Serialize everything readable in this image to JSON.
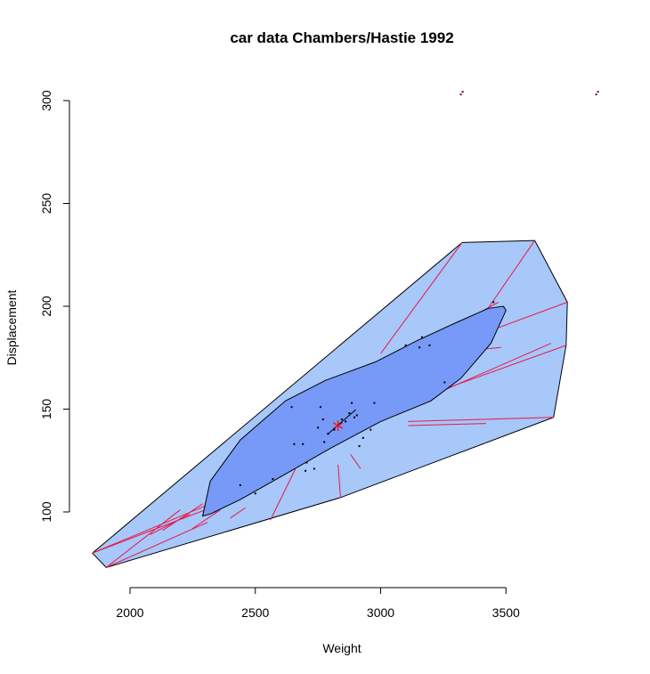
{
  "chart_data": {
    "type": "scatter",
    "title": "car data Chambers/Hastie 1992",
    "xlabel": "Weight",
    "ylabel": "Displacement",
    "xticks": [
      2000,
      2500,
      3000,
      3500
    ],
    "yticks": [
      100,
      150,
      200,
      250,
      300
    ],
    "xlim": [
      1850,
      3850
    ],
    "ylim": [
      73,
      305
    ],
    "colors": {
      "bag_outer": "#A7C8F9",
      "bag_inner": "#7799F7",
      "loop_lines": "#E8174B",
      "points": "#000000",
      "center": "#FF0000"
    },
    "center": {
      "x": 2830,
      "y": 142
    },
    "loop": [
      [
        1850,
        80
      ],
      [
        1905,
        73
      ],
      [
        2840,
        107
      ],
      [
        3690,
        146
      ],
      [
        3740,
        181
      ],
      [
        3745,
        202
      ],
      [
        3615,
        232
      ],
      [
        3325,
        231
      ],
      [
        1850,
        80
      ]
    ],
    "bag": [
      [
        2290,
        98
      ],
      [
        2320,
        99
      ],
      [
        2440,
        106
      ],
      [
        2600,
        117
      ],
      [
        2800,
        131
      ],
      [
        3000,
        144
      ],
      [
        3200,
        154
      ],
      [
        3320,
        165
      ],
      [
        3440,
        182
      ],
      [
        3500,
        198
      ],
      [
        3490,
        200
      ],
      [
        3430,
        199
      ],
      [
        3300,
        192
      ],
      [
        3140,
        183
      ],
      [
        2980,
        173
      ],
      [
        2780,
        164
      ],
      [
        2620,
        154
      ],
      [
        2440,
        135
      ],
      [
        2320,
        115
      ],
      [
        2290,
        98
      ]
    ],
    "points": [
      [
        2440,
        113
      ],
      [
        2500,
        109
      ],
      [
        2570,
        116
      ],
      [
        2645,
        151
      ],
      [
        2655,
        133
      ],
      [
        2690,
        133
      ],
      [
        2700,
        120
      ],
      [
        2705,
        124
      ],
      [
        2735,
        121
      ],
      [
        2750,
        141
      ],
      [
        2760,
        151
      ],
      [
        2770,
        145
      ],
      [
        2775,
        134
      ],
      [
        2790,
        138
      ],
      [
        2815,
        140
      ],
      [
        2845,
        145
      ],
      [
        2860,
        144
      ],
      [
        2875,
        148
      ],
      [
        2885,
        153
      ],
      [
        2895,
        146
      ],
      [
        2905,
        147
      ],
      [
        2915,
        132
      ],
      [
        2930,
        136
      ],
      [
        2960,
        140
      ],
      [
        2975,
        153
      ],
      [
        3100,
        181
      ],
      [
        3155,
        180
      ],
      [
        3165,
        185
      ],
      [
        3195,
        181
      ],
      [
        3255,
        163
      ],
      [
        3450,
        202
      ]
    ],
    "outliers": [
      [
        3320,
        303
      ],
      [
        3860,
        303
      ]
    ],
    "rays": [
      [
        [
          1850,
          80
        ],
        [
          2380,
          107
        ]
      ],
      [
        [
          1850,
          80
        ],
        [
          2300,
          101
        ]
      ],
      [
        [
          1905,
          73
        ],
        [
          2310,
          95
        ]
      ],
      [
        [
          1905,
          73
        ],
        [
          2200,
          101
        ]
      ],
      [
        [
          2130,
          91
        ],
        [
          2290,
          104
        ]
      ],
      [
        [
          2080,
          89
        ],
        [
          2240,
          99
        ]
      ],
      [
        [
          2250,
          92
        ],
        [
          2360,
          101
        ]
      ],
      [
        [
          2400,
          97
        ],
        [
          2460,
          102
        ]
      ],
      [
        [
          2340,
          99
        ],
        [
          2370,
          114
        ]
      ],
      [
        [
          2560,
          96
        ],
        [
          2660,
          121
        ]
      ],
      [
        [
          2840,
          107
        ],
        [
          2830,
          123
        ]
      ],
      [
        [
          2880,
          128
        ],
        [
          2920,
          121
        ]
      ],
      [
        [
          3110,
          142
        ],
        [
          3420,
          143
        ]
      ],
      [
        [
          3110,
          144
        ],
        [
          3690,
          146
        ]
      ],
      [
        [
          3260,
          160
        ],
        [
          3740,
          181
        ]
      ],
      [
        [
          3230,
          158
        ],
        [
          3680,
          182
        ]
      ],
      [
        [
          3390,
          186
        ],
        [
          3745,
          202
        ]
      ],
      [
        [
          3000,
          177
        ],
        [
          3325,
          231
        ]
      ],
      [
        [
          3400,
          194
        ],
        [
          3615,
          232
        ]
      ],
      [
        [
          3080,
          176
        ],
        [
          3470,
          202
        ]
      ],
      [
        [
          3390,
          179
        ],
        [
          3480,
          180
        ]
      ]
    ]
  }
}
